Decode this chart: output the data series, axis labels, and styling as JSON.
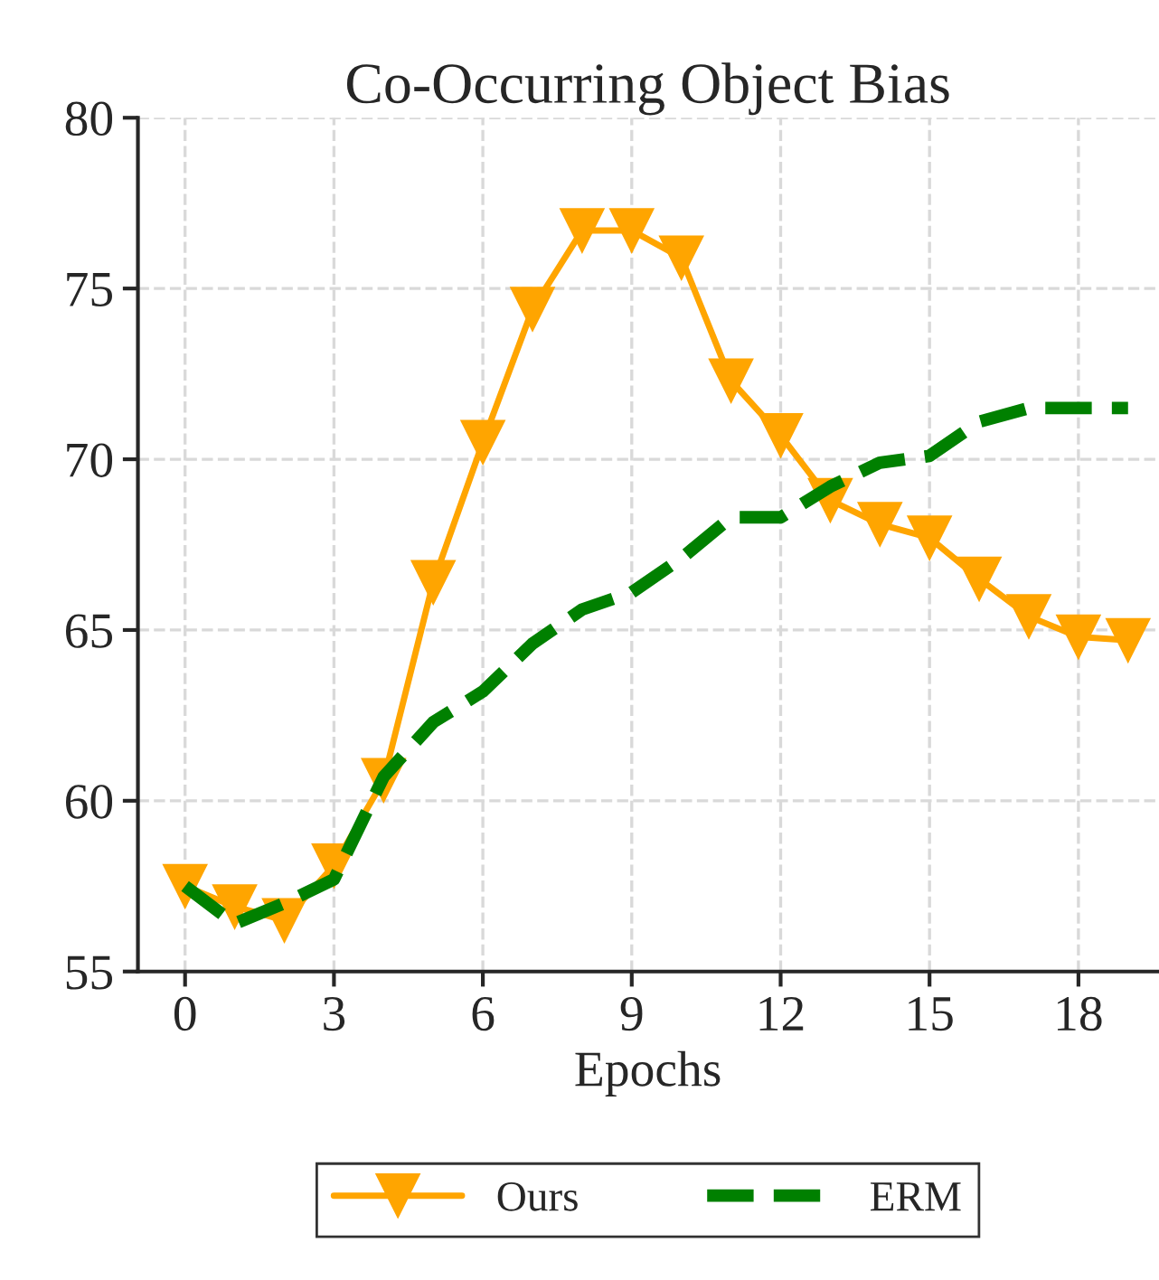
{
  "chart_data": {
    "type": "line",
    "title": "Co-Occurring Object Bias",
    "xlabel": "Epochs",
    "x": [
      0,
      1,
      2,
      3,
      4,
      5,
      6,
      7,
      8,
      9,
      10,
      11,
      12,
      13,
      14,
      15,
      16,
      17,
      18,
      19
    ],
    "series": [
      {
        "name": "Ours",
        "color": "#ffa500",
        "marker": "triangle",
        "line_style": "solid",
        "values": [
          57.5,
          56.9,
          56.5,
          58.1,
          60.6,
          66.4,
          70.5,
          74.4,
          76.7,
          76.7,
          75.9,
          72.3,
          70.7,
          68.8,
          68.1,
          67.7,
          66.5,
          65.4,
          64.8,
          64.7
        ]
      },
      {
        "name": "ERM",
        "color": "#008000",
        "marker": "none",
        "line_style": "dashed",
        "values": [
          57.5,
          56.4,
          57.0,
          57.7,
          60.7,
          62.3,
          63.2,
          64.6,
          65.6,
          66.1,
          67.1,
          68.3,
          68.3,
          69.2,
          69.9,
          70.1,
          71.1,
          71.5,
          71.5,
          71.5
        ]
      }
    ],
    "xlim": [
      -0.95,
      19.6
    ],
    "ylim": [
      55,
      80
    ],
    "xticks": [
      0,
      3,
      6,
      9,
      12,
      15,
      18
    ],
    "yticks": [
      55,
      60,
      65,
      70,
      75,
      80
    ],
    "grid": true,
    "legend": "bottom"
  }
}
